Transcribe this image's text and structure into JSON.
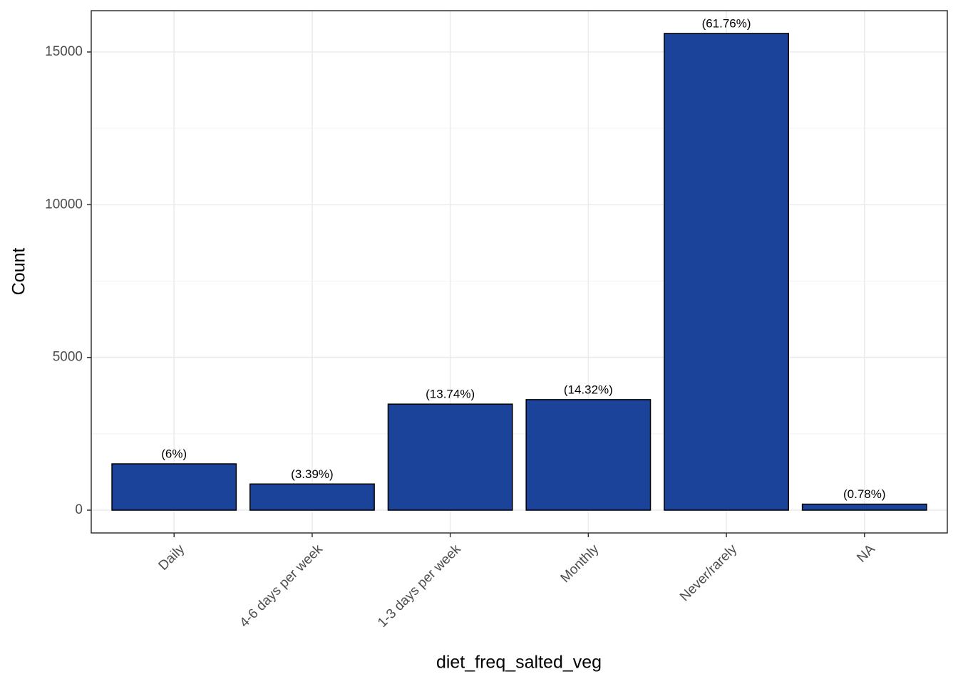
{
  "chart_data": {
    "type": "bar",
    "x_label": "diet_freq_salted_veg",
    "y_label": "Count",
    "categories": [
      "Daily",
      "4-6 days per week",
      "1-3 days per week",
      "Monthly",
      "Never/rarely",
      "NA"
    ],
    "values": [
      1516,
      857,
      3472,
      3619,
      15607,
      197
    ],
    "bar_labels": [
      "(6%)",
      "(3.39%)",
      "(13.74%)",
      "(14.32%)",
      "(61.76%)",
      "(0.78%)"
    ],
    "color": "#1a4399",
    "ylim": [
      -746,
      16352
    ],
    "yticks": [
      0,
      5000,
      10000,
      15000
    ],
    "yminor": [
      2500,
      7500,
      12500
    ],
    "grid": true
  }
}
